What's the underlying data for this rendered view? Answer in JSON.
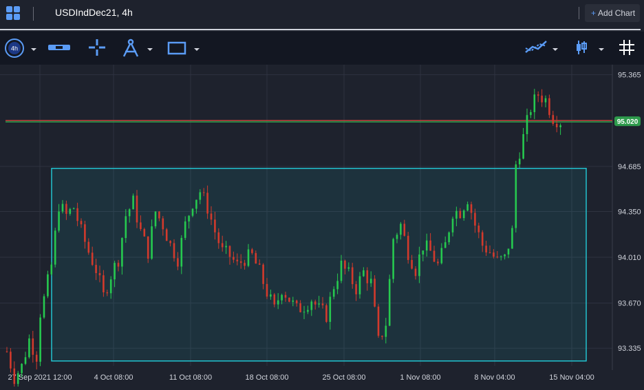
{
  "header": {
    "tab_title": "USDIndDec21, 4h",
    "add_chart_label": "Add Chart"
  },
  "toolbar": {
    "interval_label": "4h",
    "icons": [
      "interval-icon",
      "measure-icon",
      "crosshair-icon",
      "compass-icon",
      "rectangle-icon",
      "indicators-icon",
      "candle-style-icon",
      "grid-toggle-icon"
    ]
  },
  "colors": {
    "background": "#1e222d",
    "grid": "#2f3340",
    "up": "#26c94f",
    "down": "#d33a2c",
    "rectangle": "#22c3d0",
    "price_badge": "#2e9b4c"
  },
  "chart_data": {
    "type": "candlestick",
    "symbol": "USDIndDec21",
    "timeframe": "4h",
    "current_price": "95.020",
    "y_ticks": [
      "95.365",
      "94.685",
      "94.350",
      "94.010",
      "93.670",
      "93.335"
    ],
    "y_tick_values": [
      95.365,
      94.685,
      94.35,
      94.01,
      93.67,
      93.335
    ],
    "x_ticks": [
      "27 Sep 2021 12:00",
      "4 Oct 08:00",
      "11 Oct 08:00",
      "18 Oct 08:00",
      "25 Oct 08:00",
      "1 Nov 08:00",
      "8 Nov 04:00",
      "15 Nov 04:00"
    ],
    "ylim": [
      93.05,
      95.44
    ],
    "horizontal_line": 95.02,
    "rectangle": {
      "start": "28 Sep 2021",
      "end": "16 Nov 2021",
      "high": 94.67,
      "low": 93.24
    },
    "grid": true,
    "close_path": [
      [
        0,
        93.31
      ],
      [
        2,
        93.12
      ],
      [
        4,
        93.2
      ],
      [
        6,
        93.4
      ],
      [
        8,
        93.28
      ],
      [
        9,
        93.6
      ],
      [
        10,
        93.7
      ],
      [
        12,
        93.95
      ],
      [
        14,
        94.4
      ],
      [
        16,
        94.32
      ],
      [
        18,
        94.38
      ],
      [
        20,
        94.2
      ],
      [
        22,
        94.05
      ],
      [
        24,
        93.92
      ],
      [
        26,
        93.72
      ],
      [
        28,
        93.88
      ],
      [
        30,
        94.0
      ],
      [
        32,
        94.32
      ],
      [
        34,
        94.42
      ],
      [
        36,
        94.2
      ],
      [
        38,
        94.05
      ],
      [
        40,
        94.35
      ],
      [
        42,
        94.25
      ],
      [
        44,
        94.1
      ],
      [
        46,
        94.0
      ],
      [
        48,
        94.25
      ],
      [
        50,
        94.42
      ],
      [
        52,
        94.5
      ],
      [
        54,
        94.38
      ],
      [
        56,
        94.2
      ],
      [
        58,
        94.05
      ],
      [
        60,
        94.02
      ],
      [
        62,
        93.95
      ],
      [
        64,
        94.0
      ],
      [
        66,
        94.02
      ],
      [
        68,
        93.9
      ],
      [
        70,
        93.75
      ],
      [
        72,
        93.62
      ],
      [
        74,
        93.78
      ],
      [
        76,
        93.7
      ],
      [
        78,
        93.62
      ],
      [
        80,
        93.65
      ],
      [
        82,
        93.7
      ],
      [
        84,
        93.62
      ],
      [
        86,
        93.58
      ],
      [
        88,
        93.8
      ],
      [
        90,
        93.95
      ],
      [
        92,
        93.88
      ],
      [
        94,
        93.78
      ],
      [
        96,
        93.9
      ],
      [
        98,
        93.82
      ],
      [
        100,
        93.38
      ],
      [
        102,
        93.52
      ],
      [
        104,
        94.15
      ],
      [
        106,
        94.25
      ],
      [
        108,
        94.05
      ],
      [
        110,
        93.92
      ],
      [
        112,
        94.1
      ],
      [
        114,
        94.05
      ],
      [
        116,
        93.95
      ],
      [
        118,
        94.1
      ],
      [
        120,
        94.35
      ],
      [
        122,
        94.35
      ],
      [
        124,
        94.45
      ],
      [
        126,
        94.25
      ],
      [
        128,
        94.1
      ],
      [
        130,
        94.05
      ],
      [
        132,
        93.98
      ],
      [
        134,
        94.0
      ],
      [
        136,
        94.2
      ],
      [
        137,
        94.7
      ],
      [
        139,
        94.9
      ],
      [
        141,
        95.12
      ],
      [
        143,
        95.22
      ],
      [
        145,
        95.18
      ],
      [
        147,
        95.05
      ],
      [
        149,
        95.02
      ]
    ]
  }
}
